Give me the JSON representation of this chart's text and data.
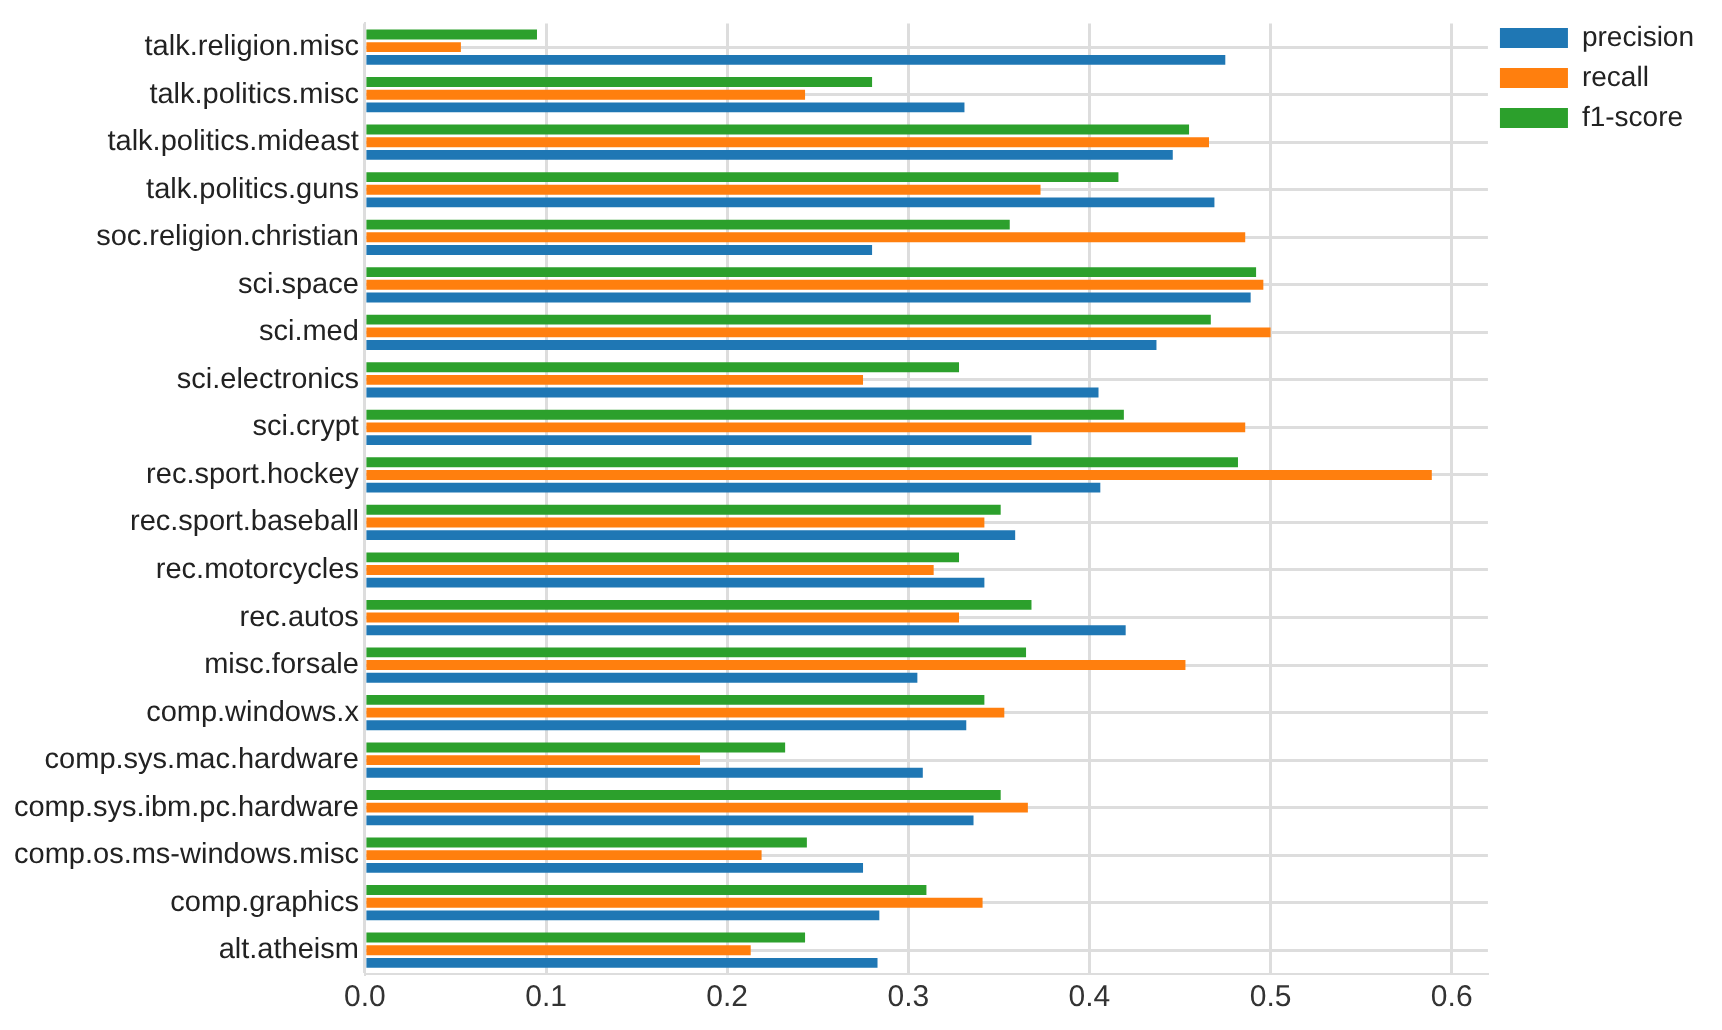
{
  "chart_data": {
    "type": "bar",
    "orientation": "horizontal",
    "categories": [
      "talk.religion.misc",
      "talk.politics.misc",
      "talk.politics.mideast",
      "talk.politics.guns",
      "soc.religion.christian",
      "sci.space",
      "sci.med",
      "sci.electronics",
      "sci.crypt",
      "rec.sport.hockey",
      "rec.sport.baseball",
      "rec.motorcycles",
      "rec.autos",
      "misc.forsale",
      "comp.windows.x",
      "comp.sys.mac.hardware",
      "comp.sys.ibm.pc.hardware",
      "comp.os.ms-windows.misc",
      "comp.graphics",
      "alt.atheism"
    ],
    "series": [
      {
        "name": "precision",
        "color": "#1f77b4",
        "values": [
          0.475,
          0.331,
          0.446,
          0.469,
          0.28,
          0.489,
          0.437,
          0.405,
          0.368,
          0.406,
          0.359,
          0.342,
          0.42,
          0.305,
          0.332,
          0.308,
          0.336,
          0.275,
          0.284,
          0.283
        ]
      },
      {
        "name": "recall",
        "color": "#ff7f0e",
        "values": [
          0.053,
          0.243,
          0.466,
          0.373,
          0.486,
          0.496,
          0.5,
          0.275,
          0.486,
          0.589,
          0.342,
          0.314,
          0.328,
          0.453,
          0.353,
          0.185,
          0.366,
          0.219,
          0.341,
          0.213
        ]
      },
      {
        "name": "f1-score",
        "color": "#2ca02c",
        "values": [
          0.095,
          0.28,
          0.455,
          0.416,
          0.356,
          0.492,
          0.467,
          0.328,
          0.419,
          0.482,
          0.351,
          0.328,
          0.368,
          0.365,
          0.342,
          0.232,
          0.351,
          0.244,
          0.31,
          0.243
        ]
      }
    ],
    "xlim": [
      0,
      0.62
    ],
    "xticks": [
      {
        "value": 0,
        "label": "0.0"
      },
      {
        "value": 0.1,
        "label": "0.1"
      },
      {
        "value": 0.2,
        "label": "0.2"
      },
      {
        "value": 0.3,
        "label": "0.3"
      },
      {
        "value": 0.4,
        "label": "0.4"
      },
      {
        "value": 0.5,
        "label": "0.5"
      },
      {
        "value": 0.6,
        "label": "0.6"
      }
    ],
    "grid": true,
    "legend": "top right"
  }
}
